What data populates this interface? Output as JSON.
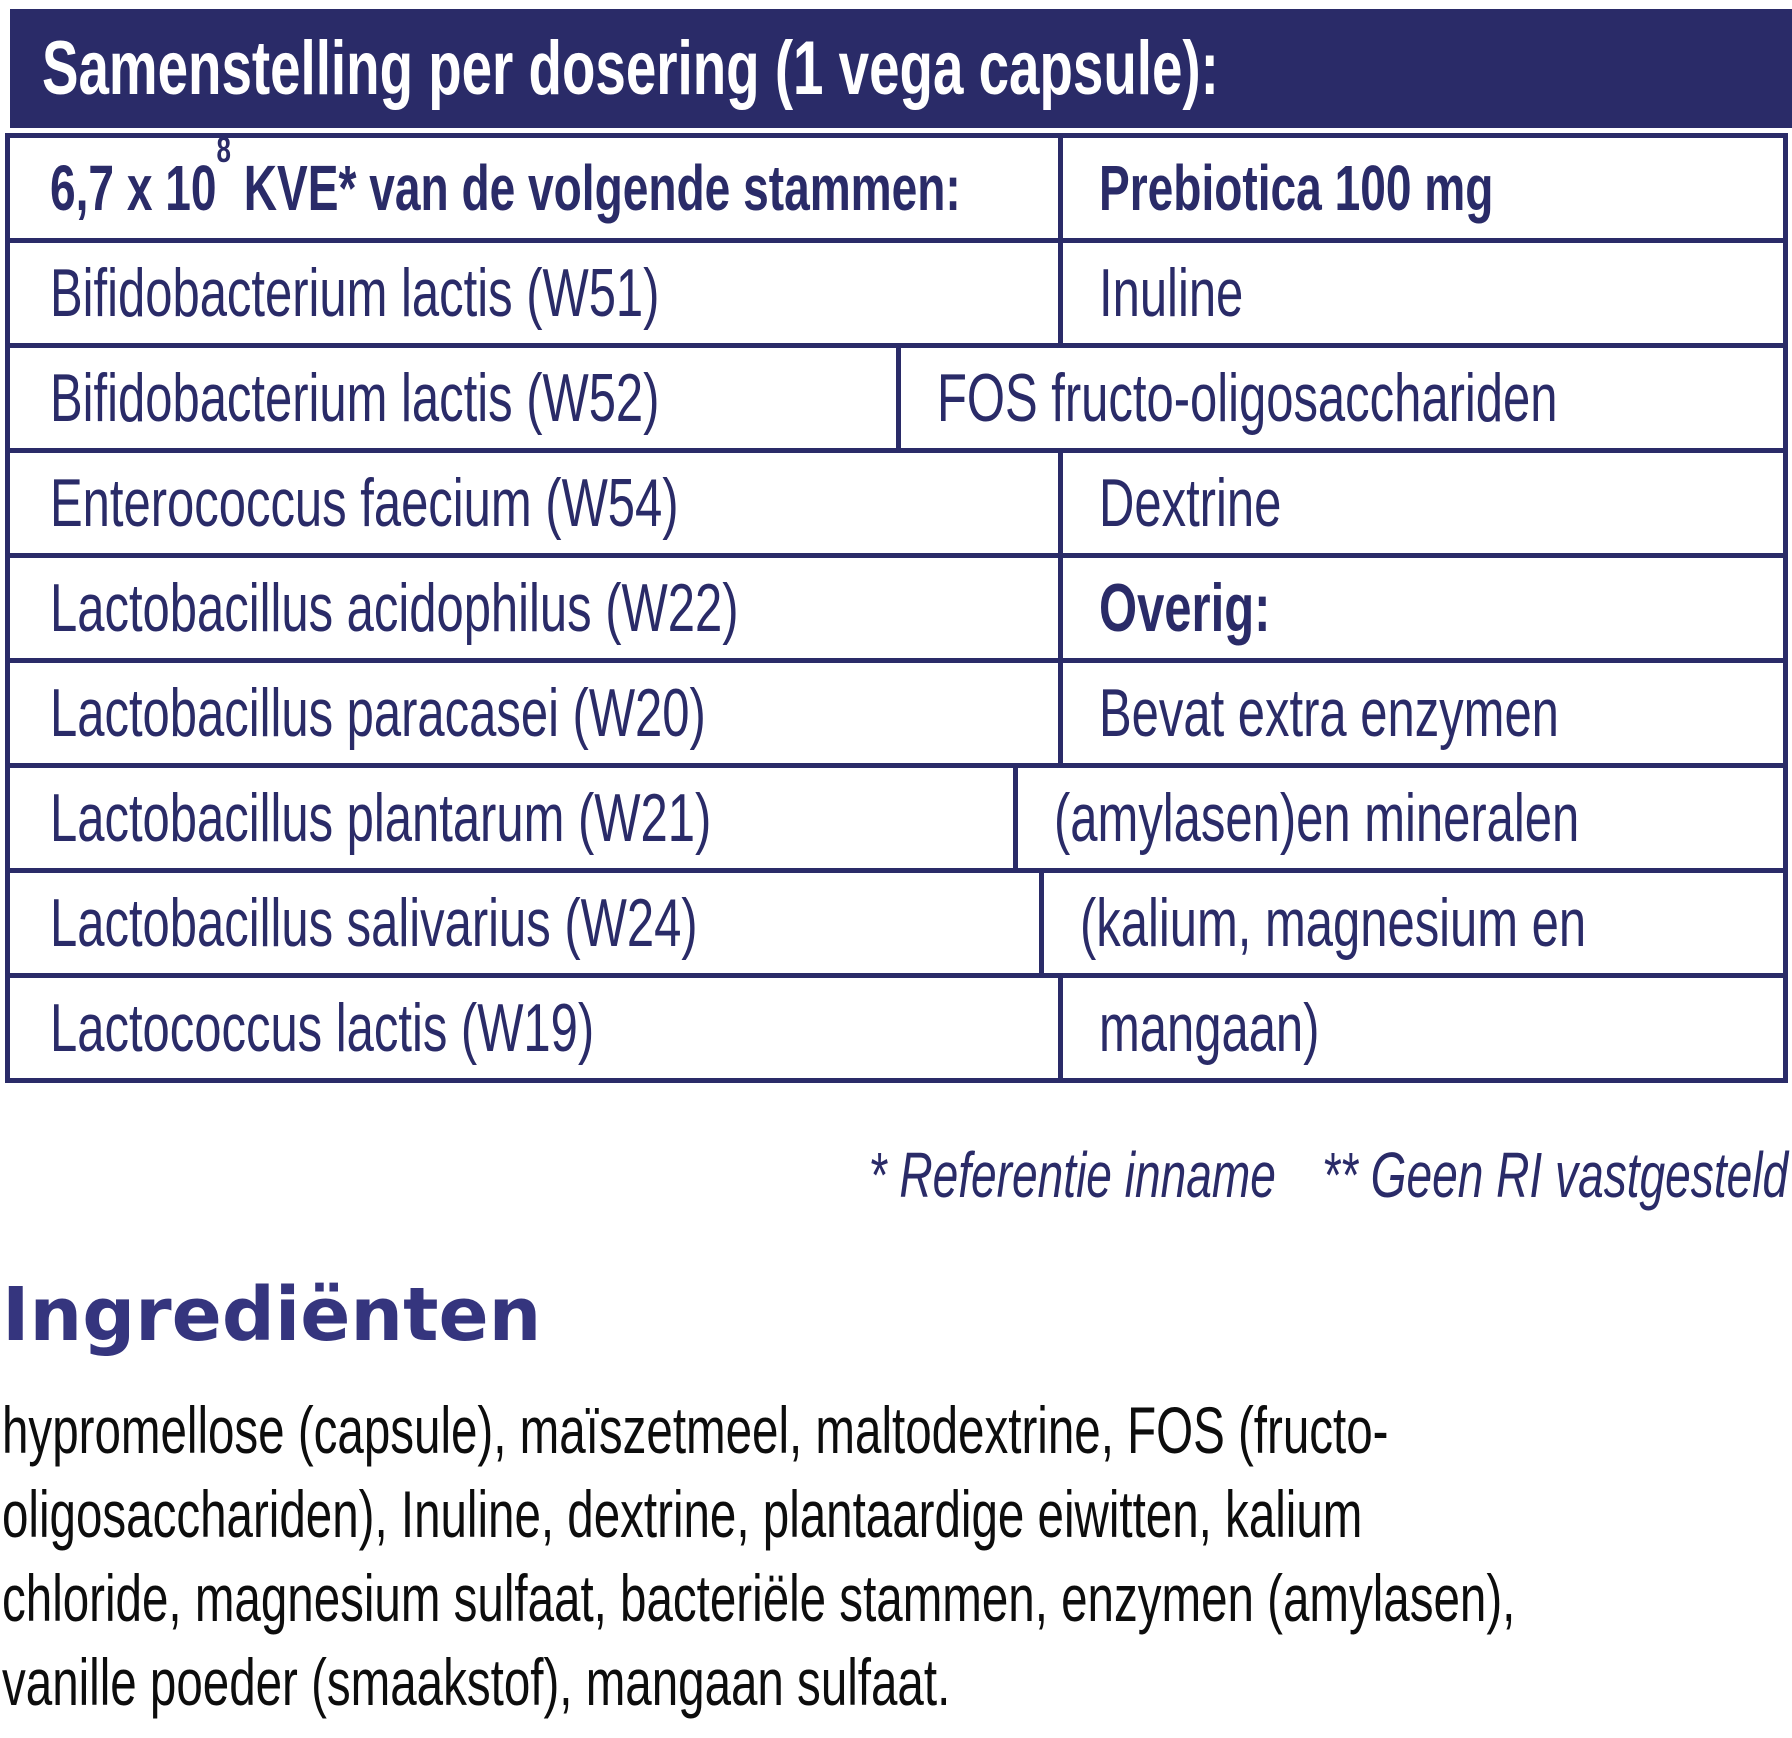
{
  "banner": {
    "title": "Samenstelling per dosering (1 vega capsule):"
  },
  "table": {
    "header": {
      "left_prefix": "6,7 x 10",
      "left_sup": "8",
      "left_suffix": " KVE* van de volgende stammen:",
      "right": "Prebiotica 100 mg"
    },
    "rows": [
      {
        "left": "Bifidobacterium lactis (W51)",
        "right": "Inuline"
      },
      {
        "left": "Bifidobacterium lactis (W52)",
        "right": "FOS fructo-oligosacchariden"
      },
      {
        "left": "Enterococcus faecium (W54)",
        "right": "Dextrine"
      },
      {
        "left": "Lactobacillus acidophilus (W22)",
        "right": "Overig:"
      },
      {
        "left": "Lactobacillus paracasei (W20)",
        "right": "Bevat extra enzymen"
      },
      {
        "left": "Lactobacillus plantarum (W21)",
        "right": "(amylasen)en mineralen"
      },
      {
        "left": "Lactobacillus salivarius (W24)",
        "right": "(kalium, magnesium en"
      },
      {
        "left": "Lactococcus lactis (W19)",
        "right": "mangaan)"
      }
    ]
  },
  "footnotes": {
    "ri_reference": "* Referentie inname",
    "no_ri": "** Geen RI vastgesteld"
  },
  "ingredients": {
    "heading": "Ingrediënten",
    "lines": [
      "hypromellose (capsule), maïszetmeel, maltodextrine, FOS (fructo-",
      "oligosacchariden), Inuline, dextrine, plantaardige eiwitten, kalium",
      "chloride, magnesium sulfaat, bacteriële stammen, enzymen (amylasen),",
      "vanille poeder (smaakstof), mangaan sulfaat."
    ]
  },
  "colors": {
    "navy": "#2a2b68",
    "heading_indigo": "#35357e",
    "body_text": "#0d0d0d",
    "banner_text": "#ffffff"
  }
}
